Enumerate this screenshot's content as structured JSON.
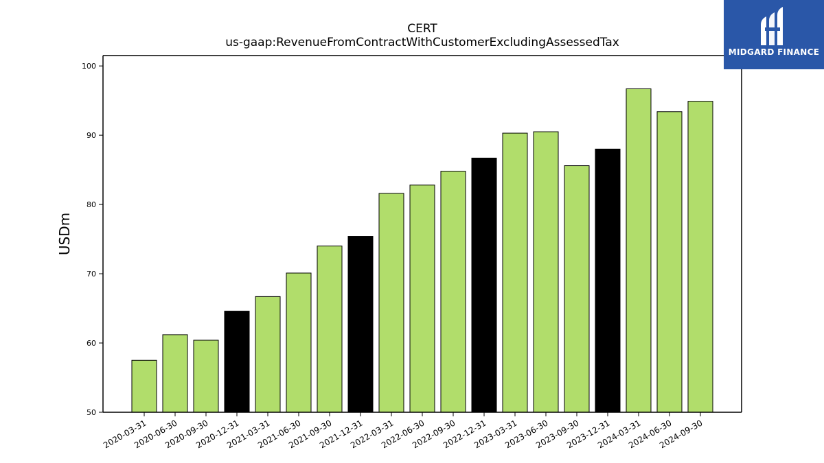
{
  "chart_data": {
    "type": "bar",
    "title": "CERT",
    "subtitle": "us-gaap:RevenueFromContractWithCustomerExcludingAssessedTax",
    "xlabel": "",
    "ylabel": "USDm",
    "ylim": [
      50,
      101.5
    ],
    "yticks": [
      50,
      60,
      70,
      80,
      90,
      100
    ],
    "grid": false,
    "categories": [
      "2020-03-31",
      "2020-06-30",
      "2020-09-30",
      "2020-12-31",
      "2021-03-31",
      "2021-06-30",
      "2021-09-30",
      "2021-12-31",
      "2022-03-31",
      "2022-06-30",
      "2022-09-30",
      "2022-12-31",
      "2023-03-31",
      "2023-06-30",
      "2023-09-30",
      "2023-12-31",
      "2024-03-31",
      "2024-06-30",
      "2024-09-30"
    ],
    "values": [
      57.5,
      61.2,
      60.4,
      64.6,
      66.7,
      70.1,
      74.0,
      75.4,
      81.6,
      82.8,
      84.8,
      86.7,
      90.3,
      90.5,
      85.6,
      88.0,
      96.7,
      93.4,
      94.9
    ],
    "highlight": [
      false,
      false,
      false,
      true,
      false,
      false,
      false,
      true,
      false,
      false,
      false,
      true,
      false,
      false,
      false,
      true,
      false,
      false,
      false
    ],
    "colors": {
      "bar": "#b1dd6b",
      "highlight": "#000000",
      "edge": "#000000"
    }
  },
  "logo": {
    "text": "MIDGARD FINANCE",
    "background": "#2a57a8"
  }
}
